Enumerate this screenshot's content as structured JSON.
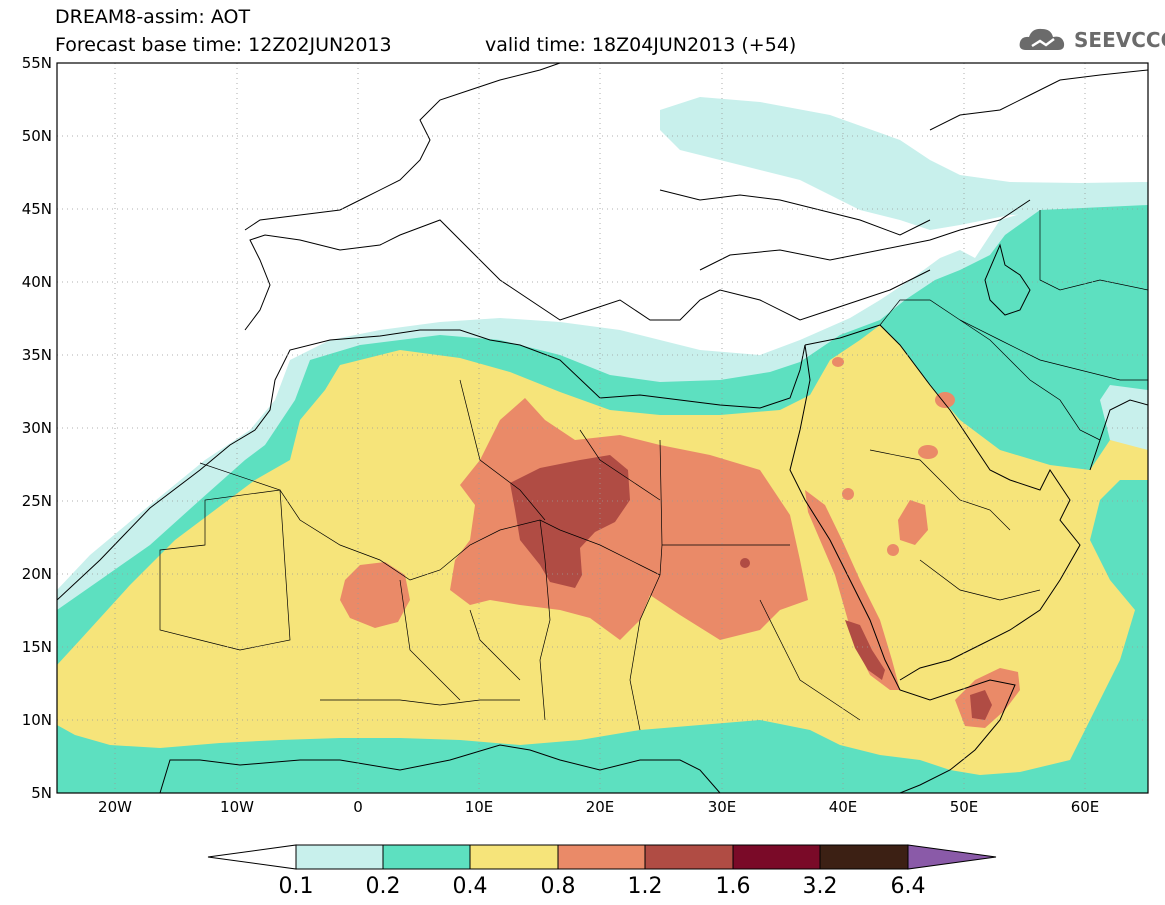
{
  "title": {
    "line1": "DREAM8-assim: AOT",
    "line2": "Forecast base time: 12Z02JUN2013",
    "valid": "valid time: 18Z04JUN2013 (+54)"
  },
  "logo": {
    "text": "SEEVCCC",
    "icon": "cloud-icon"
  },
  "axes": {
    "lat_labels": [
      "55N",
      "50N",
      "45N",
      "40N",
      "35N",
      "30N",
      "25N",
      "20N",
      "15N",
      "10N",
      "5N"
    ],
    "lon_labels": [
      "20W",
      "10W",
      "0",
      "10E",
      "20E",
      "30E",
      "40E",
      "50E",
      "60E"
    ]
  },
  "colorbar": {
    "labels": [
      "0.1",
      "0.2",
      "0.4",
      "0.8",
      "1.2",
      "1.6",
      "3.2",
      "6.4"
    ],
    "colors": [
      "#ffffff",
      "#c8f0ec",
      "#5de0c0",
      "#f6e47a",
      "#ea8a68",
      "#b04c44",
      "#7a0a28",
      "#3c2014",
      "#8a5aa8"
    ]
  },
  "palette": {
    "light_teal": "#c8f0ec",
    "teal": "#5de0c0",
    "yellow": "#f6e47a",
    "orange": "#ea8a68",
    "red_brown": "#b04c44",
    "dark_maroon": "#7a0a28",
    "dark_brown": "#3c2014"
  }
}
